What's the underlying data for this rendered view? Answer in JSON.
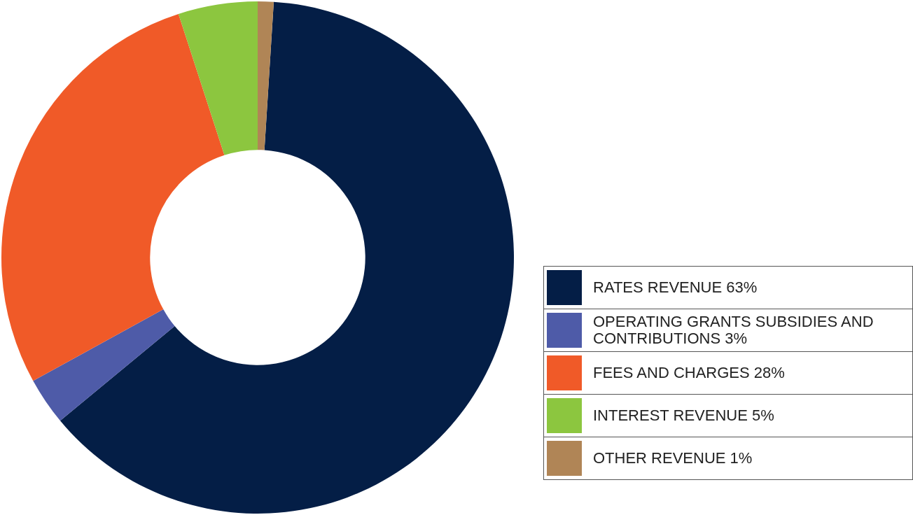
{
  "chart_data": {
    "type": "donut",
    "categories": [
      "RATES REVENUE 63%",
      "OPERATING GRANTS SUBSIDIES AND CONTRIBUTIONS 3%",
      "FEES AND CHARGES 28%",
      "INTEREST REVENUE 5%",
      "OTHER REVENUE 1%"
    ],
    "values": [
      63,
      3,
      28,
      5,
      1
    ],
    "colors": [
      "#041e46",
      "#4e5ba8",
      "#f05a28",
      "#8cc63f",
      "#b08556"
    ],
    "legend": "right"
  }
}
